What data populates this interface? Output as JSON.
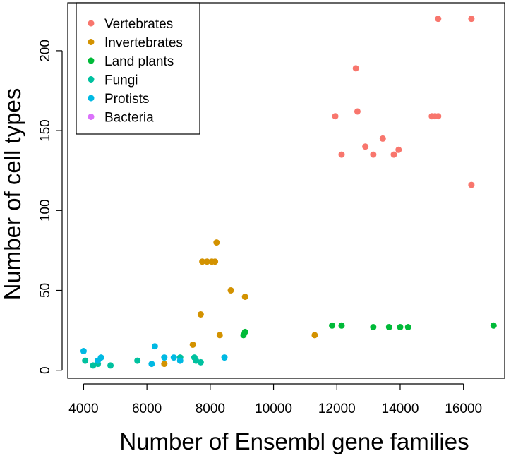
{
  "chart_data": {
    "type": "scatter",
    "title": "",
    "xlabel": "Number of Ensembl gene families",
    "ylabel": "Number of cell types",
    "xlim": [
      3500,
      17300
    ],
    "ylim": [
      -5,
      230
    ],
    "xticks": [
      4000,
      6000,
      8000,
      10000,
      12000,
      14000,
      16000
    ],
    "yticks": [
      0,
      50,
      100,
      150,
      200
    ],
    "grid": false,
    "legend_position": "top-left",
    "series": [
      {
        "name": "Vertebrates",
        "color": "#F8766D",
        "points": [
          [
            15200,
            220
          ],
          [
            16250,
            220
          ],
          [
            12600,
            189
          ],
          [
            12650,
            162
          ],
          [
            11950,
            159
          ],
          [
            15000,
            159
          ],
          [
            15100,
            159
          ],
          [
            15200,
            159
          ],
          [
            13450,
            145
          ],
          [
            12900,
            140
          ],
          [
            13950,
            138
          ],
          [
            13800,
            135
          ],
          [
            12150,
            135
          ],
          [
            13150,
            135
          ],
          [
            16250,
            116
          ]
        ]
      },
      {
        "name": "Invertebrates",
        "color": "#D39200",
        "points": [
          [
            8200,
            80
          ],
          [
            7750,
            68
          ],
          [
            7900,
            68
          ],
          [
            8050,
            68
          ],
          [
            8150,
            68
          ],
          [
            8650,
            50
          ],
          [
            9100,
            46
          ],
          [
            7700,
            35
          ],
          [
            7450,
            16
          ],
          [
            8300,
            22
          ],
          [
            11300,
            22
          ],
          [
            6550,
            4
          ]
        ]
      },
      {
        "name": "Land plants",
        "color": "#00BA38",
        "points": [
          [
            11850,
            28
          ],
          [
            12150,
            28
          ],
          [
            13150,
            27
          ],
          [
            13650,
            27
          ],
          [
            14000,
            27
          ],
          [
            14250,
            27
          ],
          [
            16950,
            28
          ],
          [
            9100,
            24
          ],
          [
            9050,
            22
          ]
        ]
      },
      {
        "name": "Fungi",
        "color": "#00C19F",
        "points": [
          [
            4050,
            6
          ],
          [
            4300,
            3
          ],
          [
            4450,
            4
          ],
          [
            4850,
            3
          ],
          [
            5700,
            6
          ],
          [
            7500,
            8
          ],
          [
            7550,
            6
          ],
          [
            7700,
            5
          ],
          [
            7050,
            8
          ]
        ]
      },
      {
        "name": "Protists",
        "color": "#00B9E3",
        "points": [
          [
            4000,
            12
          ],
          [
            4450,
            6
          ],
          [
            4550,
            8
          ],
          [
            6150,
            4
          ],
          [
            6250,
            15
          ],
          [
            6550,
            8
          ],
          [
            6850,
            8
          ],
          [
            7050,
            6
          ],
          [
            8450,
            8
          ]
        ]
      },
      {
        "name": "Bacteria",
        "color": "#DB72FB",
        "points": []
      }
    ]
  }
}
